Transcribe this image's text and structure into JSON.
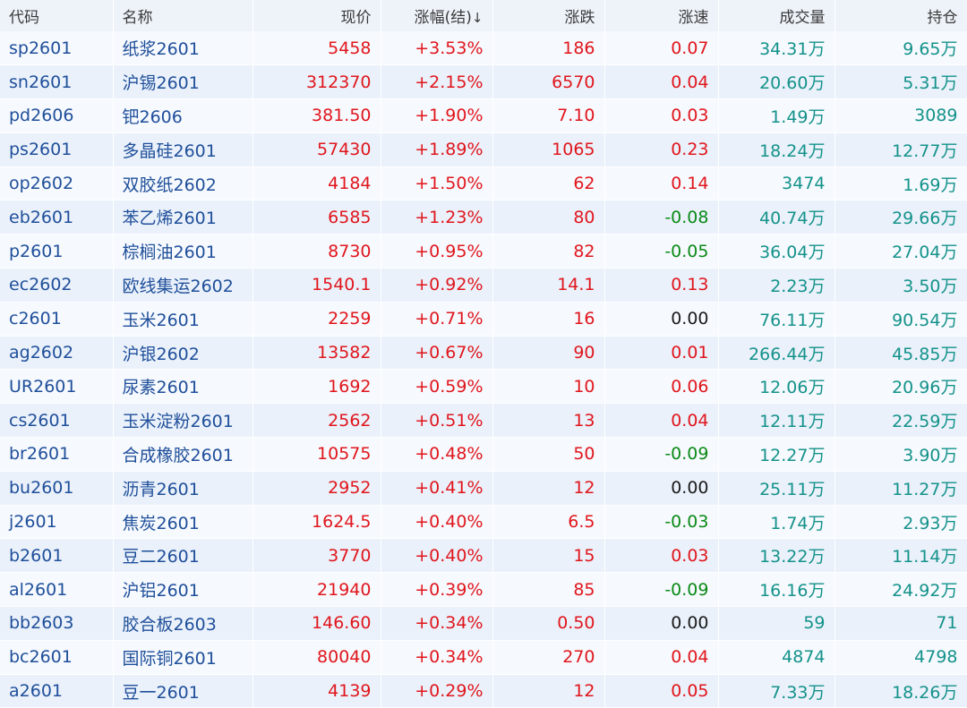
{
  "colors": {
    "up": "#e0161c",
    "down": "#0b8a17",
    "flat": "#1a1a1a",
    "link": "#1f4f9a",
    "volume": "#14928a",
    "header_bg": "#eef3fa",
    "row_bg": "#eaf1fb"
  },
  "headers": [
    "代码",
    "名称",
    "现价",
    "涨幅(结)",
    "涨跌",
    "涨速",
    "成交量",
    "持仓"
  ],
  "sort_indicator": "↓",
  "rows": [
    {
      "code": "sp2601",
      "name": "纸浆2601",
      "price": "5458",
      "pct": "+3.53%",
      "chg": "186",
      "speed": "0.07",
      "speed_dir": "up",
      "volume": "34.31万",
      "oi": "9.65万"
    },
    {
      "code": "sn2601",
      "name": "沪锡2601",
      "price": "312370",
      "pct": "+2.15%",
      "chg": "6570",
      "speed": "0.04",
      "speed_dir": "up",
      "volume": "20.60万",
      "oi": "5.31万"
    },
    {
      "code": "pd2606",
      "name": "钯2606",
      "price": "381.50",
      "pct": "+1.90%",
      "chg": "7.10",
      "speed": "0.03",
      "speed_dir": "up",
      "volume": "1.49万",
      "oi": "3089"
    },
    {
      "code": "ps2601",
      "name": "多晶硅2601",
      "price": "57430",
      "pct": "+1.89%",
      "chg": "1065",
      "speed": "0.23",
      "speed_dir": "up",
      "volume": "18.24万",
      "oi": "12.77万"
    },
    {
      "code": "op2602",
      "name": "双胶纸2602",
      "price": "4184",
      "pct": "+1.50%",
      "chg": "62",
      "speed": "0.14",
      "speed_dir": "up",
      "volume": "3474",
      "oi": "1.69万"
    },
    {
      "code": "eb2601",
      "name": "苯乙烯2601",
      "price": "6585",
      "pct": "+1.23%",
      "chg": "80",
      "speed": "-0.08",
      "speed_dir": "down",
      "volume": "40.74万",
      "oi": "29.66万"
    },
    {
      "code": "p2601",
      "name": "棕榈油2601",
      "price": "8730",
      "pct": "+0.95%",
      "chg": "82",
      "speed": "-0.05",
      "speed_dir": "down",
      "volume": "36.04万",
      "oi": "27.04万"
    },
    {
      "code": "ec2602",
      "name": "欧线集运2602",
      "price": "1540.1",
      "pct": "+0.92%",
      "chg": "14.1",
      "speed": "0.13",
      "speed_dir": "up",
      "volume": "2.23万",
      "oi": "3.50万"
    },
    {
      "code": "c2601",
      "name": "玉米2601",
      "price": "2259",
      "pct": "+0.71%",
      "chg": "16",
      "speed": "0.00",
      "speed_dir": "flat",
      "volume": "76.11万",
      "oi": "90.54万"
    },
    {
      "code": "ag2602",
      "name": "沪银2602",
      "price": "13582",
      "pct": "+0.67%",
      "chg": "90",
      "speed": "0.01",
      "speed_dir": "up",
      "volume": "266.44万",
      "oi": "45.85万"
    },
    {
      "code": "UR2601",
      "name": "尿素2601",
      "price": "1692",
      "pct": "+0.59%",
      "chg": "10",
      "speed": "0.06",
      "speed_dir": "up",
      "volume": "12.06万",
      "oi": "20.96万"
    },
    {
      "code": "cs2601",
      "name": "玉米淀粉2601",
      "price": "2562",
      "pct": "+0.51%",
      "chg": "13",
      "speed": "0.04",
      "speed_dir": "up",
      "volume": "12.11万",
      "oi": "22.59万"
    },
    {
      "code": "br2601",
      "name": "合成橡胶2601",
      "price": "10575",
      "pct": "+0.48%",
      "chg": "50",
      "speed": "-0.09",
      "speed_dir": "down",
      "volume": "12.27万",
      "oi": "3.90万"
    },
    {
      "code": "bu2601",
      "name": "沥青2601",
      "price": "2952",
      "pct": "+0.41%",
      "chg": "12",
      "speed": "0.00",
      "speed_dir": "flat",
      "volume": "25.11万",
      "oi": "11.27万"
    },
    {
      "code": "j2601",
      "name": "焦炭2601",
      "price": "1624.5",
      "pct": "+0.40%",
      "chg": "6.5",
      "speed": "-0.03",
      "speed_dir": "down",
      "volume": "1.74万",
      "oi": "2.93万"
    },
    {
      "code": "b2601",
      "name": "豆二2601",
      "price": "3770",
      "pct": "+0.40%",
      "chg": "15",
      "speed": "0.03",
      "speed_dir": "up",
      "volume": "13.22万",
      "oi": "11.14万"
    },
    {
      "code": "al2601",
      "name": "沪铝2601",
      "price": "21940",
      "pct": "+0.39%",
      "chg": "85",
      "speed": "-0.09",
      "speed_dir": "down",
      "volume": "16.16万",
      "oi": "24.92万"
    },
    {
      "code": "bb2603",
      "name": "胶合板2603",
      "price": "146.60",
      "pct": "+0.34%",
      "chg": "0.50",
      "speed": "0.00",
      "speed_dir": "flat",
      "volume": "59",
      "oi": "71"
    },
    {
      "code": "bc2601",
      "name": "国际铜2601",
      "price": "80040",
      "pct": "+0.34%",
      "chg": "270",
      "speed": "0.04",
      "speed_dir": "up",
      "volume": "4874",
      "oi": "4798"
    },
    {
      "code": "a2601",
      "name": "豆一2601",
      "price": "4139",
      "pct": "+0.29%",
      "chg": "12",
      "speed": "0.05",
      "speed_dir": "up",
      "volume": "7.33万",
      "oi": "18.26万"
    }
  ]
}
